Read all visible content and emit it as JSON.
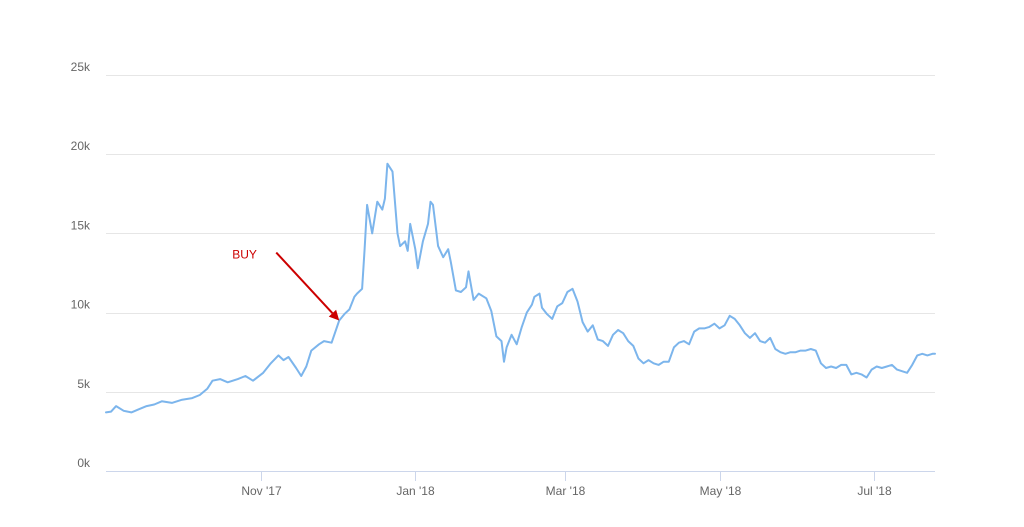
{
  "chart_data": {
    "type": "line",
    "title": "",
    "xlabel": "",
    "ylabel": "",
    "ylim": [
      0,
      25000
    ],
    "xlim": [
      "2017-09-01",
      "2018-07-25"
    ],
    "grid": true,
    "legend": "none",
    "y_ticks": [
      {
        "value": 0,
        "label": "0k"
      },
      {
        "value": 5000,
        "label": "5k"
      },
      {
        "value": 10000,
        "label": "10k"
      },
      {
        "value": 15000,
        "label": "15k"
      },
      {
        "value": 20000,
        "label": "20k"
      },
      {
        "value": 25000,
        "label": "25k"
      }
    ],
    "x_ticks": [
      {
        "value": "2017-11-01",
        "label": "Nov '17"
      },
      {
        "value": "2018-01-01",
        "label": "Jan '18"
      },
      {
        "value": "2018-03-01",
        "label": "Mar '18"
      },
      {
        "value": "2018-05-01",
        "label": "May '18"
      },
      {
        "value": "2018-07-01",
        "label": "Jul '18"
      }
    ],
    "series": [
      {
        "color": "#7cb5ec",
        "points": [
          [
            "2017-09-01",
            3700
          ],
          [
            "2017-09-03",
            3750
          ],
          [
            "2017-09-05",
            4100
          ],
          [
            "2017-09-08",
            3800
          ],
          [
            "2017-09-11",
            3700
          ],
          [
            "2017-09-14",
            3900
          ],
          [
            "2017-09-17",
            4100
          ],
          [
            "2017-09-20",
            4200
          ],
          [
            "2017-09-23",
            4400
          ],
          [
            "2017-09-27",
            4300
          ],
          [
            "2017-10-01",
            4500
          ],
          [
            "2017-10-05",
            4600
          ],
          [
            "2017-10-08",
            4800
          ],
          [
            "2017-10-11",
            5200
          ],
          [
            "2017-10-13",
            5700
          ],
          [
            "2017-10-16",
            5800
          ],
          [
            "2017-10-19",
            5600
          ],
          [
            "2017-10-23",
            5800
          ],
          [
            "2017-10-26",
            6000
          ],
          [
            "2017-10-29",
            5700
          ],
          [
            "2017-11-02",
            6200
          ],
          [
            "2017-11-05",
            6800
          ],
          [
            "2017-11-08",
            7300
          ],
          [
            "2017-11-10",
            7000
          ],
          [
            "2017-11-12",
            7200
          ],
          [
            "2017-11-15",
            6500
          ],
          [
            "2017-11-17",
            6000
          ],
          [
            "2017-11-19",
            6600
          ],
          [
            "2017-11-21",
            7600
          ],
          [
            "2017-11-24",
            8000
          ],
          [
            "2017-11-26",
            8200
          ],
          [
            "2017-11-29",
            8100
          ],
          [
            "2017-12-02",
            9500
          ],
          [
            "2017-12-04",
            9900
          ],
          [
            "2017-12-06",
            10200
          ],
          [
            "2017-12-08",
            11000
          ],
          [
            "2017-12-09",
            11200
          ],
          [
            "2017-12-11",
            11500
          ],
          [
            "2017-12-12",
            14000
          ],
          [
            "2017-12-13",
            16800
          ],
          [
            "2017-12-15",
            15000
          ],
          [
            "2017-12-17",
            17000
          ],
          [
            "2017-12-19",
            16500
          ],
          [
            "2017-12-20",
            17200
          ],
          [
            "2017-12-21",
            19400
          ],
          [
            "2017-12-23",
            18900
          ],
          [
            "2017-12-25",
            15000
          ],
          [
            "2017-12-26",
            14200
          ],
          [
            "2017-12-28",
            14500
          ],
          [
            "2017-12-29",
            13900
          ],
          [
            "2017-12-30",
            15600
          ],
          [
            "2018-01-01",
            14000
          ],
          [
            "2018-01-02",
            12800
          ],
          [
            "2018-01-04",
            14500
          ],
          [
            "2018-01-06",
            15600
          ],
          [
            "2018-01-07",
            17000
          ],
          [
            "2018-01-08",
            16800
          ],
          [
            "2018-01-10",
            14200
          ],
          [
            "2018-01-12",
            13500
          ],
          [
            "2018-01-14",
            14000
          ],
          [
            "2018-01-15",
            13200
          ],
          [
            "2018-01-17",
            11400
          ],
          [
            "2018-01-19",
            11300
          ],
          [
            "2018-01-21",
            11600
          ],
          [
            "2018-01-22",
            12600
          ],
          [
            "2018-01-24",
            10800
          ],
          [
            "2018-01-26",
            11200
          ],
          [
            "2018-01-29",
            10900
          ],
          [
            "2018-01-31",
            10100
          ],
          [
            "2018-02-02",
            8500
          ],
          [
            "2018-02-04",
            8200
          ],
          [
            "2018-02-05",
            6900
          ],
          [
            "2018-02-06",
            7800
          ],
          [
            "2018-02-08",
            8600
          ],
          [
            "2018-02-10",
            8000
          ],
          [
            "2018-02-12",
            9100
          ],
          [
            "2018-02-14",
            10000
          ],
          [
            "2018-02-16",
            10500
          ],
          [
            "2018-02-17",
            11000
          ],
          [
            "2018-02-19",
            11200
          ],
          [
            "2018-02-20",
            10300
          ],
          [
            "2018-02-22",
            9900
          ],
          [
            "2018-02-24",
            9600
          ],
          [
            "2018-02-26",
            10400
          ],
          [
            "2018-02-28",
            10600
          ],
          [
            "2018-03-02",
            11300
          ],
          [
            "2018-03-04",
            11500
          ],
          [
            "2018-03-06",
            10700
          ],
          [
            "2018-03-08",
            9400
          ],
          [
            "2018-03-10",
            8800
          ],
          [
            "2018-03-12",
            9200
          ],
          [
            "2018-03-14",
            8300
          ],
          [
            "2018-03-16",
            8200
          ],
          [
            "2018-03-18",
            7900
          ],
          [
            "2018-03-20",
            8600
          ],
          [
            "2018-03-22",
            8900
          ],
          [
            "2018-03-24",
            8700
          ],
          [
            "2018-03-26",
            8200
          ],
          [
            "2018-03-28",
            7900
          ],
          [
            "2018-03-30",
            7100
          ],
          [
            "2018-04-01",
            6800
          ],
          [
            "2018-04-03",
            7000
          ],
          [
            "2018-04-05",
            6800
          ],
          [
            "2018-04-07",
            6700
          ],
          [
            "2018-04-09",
            6900
          ],
          [
            "2018-04-11",
            6900
          ],
          [
            "2018-04-13",
            7800
          ],
          [
            "2018-04-15",
            8100
          ],
          [
            "2018-04-17",
            8200
          ],
          [
            "2018-04-19",
            8000
          ],
          [
            "2018-04-21",
            8800
          ],
          [
            "2018-04-23",
            9000
          ],
          [
            "2018-04-25",
            9000
          ],
          [
            "2018-04-27",
            9100
          ],
          [
            "2018-04-29",
            9300
          ],
          [
            "2018-05-01",
            9000
          ],
          [
            "2018-05-03",
            9200
          ],
          [
            "2018-05-05",
            9800
          ],
          [
            "2018-05-07",
            9600
          ],
          [
            "2018-05-09",
            9200
          ],
          [
            "2018-05-11",
            8700
          ],
          [
            "2018-05-13",
            8400
          ],
          [
            "2018-05-15",
            8700
          ],
          [
            "2018-05-17",
            8200
          ],
          [
            "2018-05-19",
            8100
          ],
          [
            "2018-05-21",
            8400
          ],
          [
            "2018-05-23",
            7700
          ],
          [
            "2018-05-25",
            7500
          ],
          [
            "2018-05-27",
            7400
          ],
          [
            "2018-05-29",
            7500
          ],
          [
            "2018-05-31",
            7500
          ],
          [
            "2018-06-02",
            7600
          ],
          [
            "2018-06-04",
            7600
          ],
          [
            "2018-06-06",
            7700
          ],
          [
            "2018-06-08",
            7600
          ],
          [
            "2018-06-10",
            6800
          ],
          [
            "2018-06-12",
            6500
          ],
          [
            "2018-06-14",
            6600
          ],
          [
            "2018-06-16",
            6500
          ],
          [
            "2018-06-18",
            6700
          ],
          [
            "2018-06-20",
            6700
          ],
          [
            "2018-06-22",
            6100
          ],
          [
            "2018-06-24",
            6200
          ],
          [
            "2018-06-26",
            6100
          ],
          [
            "2018-06-28",
            5900
          ],
          [
            "2018-06-30",
            6400
          ],
          [
            "2018-07-02",
            6600
          ],
          [
            "2018-07-04",
            6500
          ],
          [
            "2018-07-06",
            6600
          ],
          [
            "2018-07-08",
            6700
          ],
          [
            "2018-07-10",
            6400
          ],
          [
            "2018-07-12",
            6300
          ],
          [
            "2018-07-14",
            6200
          ],
          [
            "2018-07-16",
            6700
          ],
          [
            "2018-07-18",
            7300
          ],
          [
            "2018-07-20",
            7400
          ],
          [
            "2018-07-22",
            7300
          ],
          [
            "2018-07-24",
            7400
          ],
          [
            "2018-07-25",
            7400
          ]
        ]
      }
    ],
    "annotations": [
      {
        "text": "BUY",
        "target": [
          "2017-12-02",
          9500
        ],
        "color": "#cc0000"
      }
    ]
  }
}
